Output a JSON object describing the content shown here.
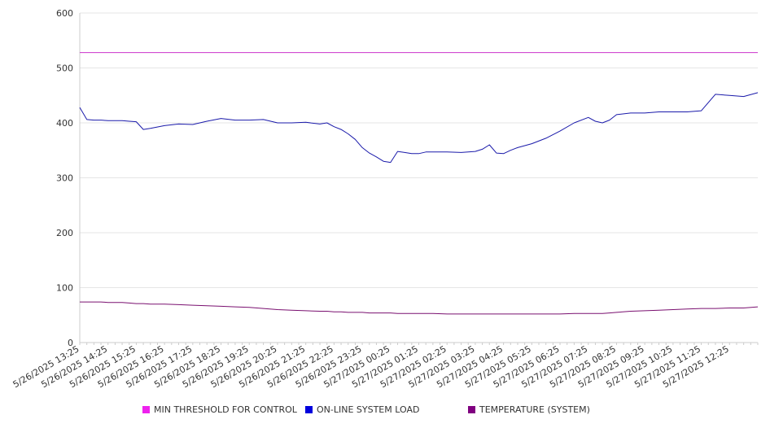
{
  "chart_data": {
    "type": "line",
    "title": "",
    "xlabel": "",
    "ylabel": "",
    "ylim": [
      0,
      600
    ],
    "yticks": [
      0,
      100,
      200,
      300,
      400,
      500,
      600
    ],
    "grid": true,
    "legend_position": "bottom",
    "x_tick_labels": [
      "5/26/2025 13:25",
      "5/26/2025 14:25",
      "5/26/2025 15:25",
      "5/26/2025 16:25",
      "5/26/2025 17:25",
      "5/26/2025 18:25",
      "5/26/2025 19:25",
      "5/26/2025 20:25",
      "5/26/2025 21:25",
      "5/26/2025 22:25",
      "5/26/2025 23:25",
      "5/27/2025 00:25",
      "5/27/2025 01:25",
      "5/27/2025 02:25",
      "5/27/2025 03:25",
      "5/27/2025 04:25",
      "5/27/2025 05:25",
      "5/27/2025 06:25",
      "5/27/2025 07:25",
      "5/27/2025 08:25",
      "5/27/2025 09:25",
      "5/27/2025 10:25",
      "5/27/2025 11:25",
      "5/27/2025 12:25"
    ],
    "x_hours": [
      0,
      0.25,
      0.5,
      0.75,
      1,
      1.5,
      1.75,
      2,
      2.25,
      2.5,
      3,
      3.5,
      4,
      4.5,
      5,
      5.5,
      6,
      6.5,
      7,
      7.5,
      8,
      8.5,
      8.75,
      9,
      9.25,
      9.5,
      9.75,
      10,
      10.25,
      10.5,
      10.75,
      11,
      11.25,
      11.5,
      11.75,
      12,
      12.25,
      12.5,
      13,
      13.5,
      14,
      14.25,
      14.5,
      14.75,
      15,
      15.25,
      15.5,
      16,
      16.5,
      17,
      17.5,
      18,
      18.25,
      18.5,
      18.75,
      19,
      19.5,
      20,
      20.5,
      21,
      21.5,
      22,
      22.5,
      23,
      23.5,
      24
    ],
    "series": [
      {
        "name": "MIN THRESHOLD FOR CONTROL",
        "color": "#cc33cc",
        "values": [
          528,
          528,
          528,
          528,
          528,
          528,
          528,
          528,
          528,
          528,
          528,
          528,
          528,
          528,
          528,
          528,
          528,
          528,
          528,
          528,
          528,
          528,
          528,
          528,
          528,
          528,
          528,
          528,
          528,
          528,
          528,
          528,
          528,
          528,
          528,
          528,
          528,
          528,
          528,
          528,
          528,
          528,
          528,
          528,
          528,
          528,
          528,
          528,
          528,
          528,
          528,
          528,
          528,
          528,
          528,
          528,
          528,
          528,
          528,
          528,
          528,
          528,
          528,
          528,
          528,
          528
        ]
      },
      {
        "name": "ON-LINE SYSTEM LOAD",
        "color": "#1a1aaa",
        "values": [
          428,
          406,
          405,
          405,
          404,
          404,
          403,
          402,
          388,
          390,
          395,
          398,
          397,
          403,
          408,
          405,
          405,
          406,
          400,
          400,
          401,
          398,
          400,
          393,
          388,
          380,
          370,
          355,
          345,
          338,
          330,
          328,
          348,
          346,
          344,
          344,
          347,
          347,
          347,
          346,
          348,
          352,
          360,
          345,
          344,
          350,
          355,
          362,
          372,
          385,
          400,
          410,
          403,
          400,
          405,
          415,
          418,
          418,
          420,
          420,
          420,
          422,
          452,
          450,
          448,
          455
        ]
      },
      {
        "name": "TEMPERATURE (SYSTEM)",
        "color": "#7a1070",
        "values": [
          74,
          74,
          74,
          74,
          73,
          73,
          72,
          71,
          71,
          70,
          70,
          69,
          68,
          67,
          66,
          65,
          64,
          62,
          60,
          59,
          58,
          57,
          57,
          56,
          56,
          55,
          55,
          55,
          54,
          54,
          54,
          54,
          53,
          53,
          53,
          53,
          53,
          53,
          52,
          52,
          52,
          52,
          52,
          52,
          52,
          52,
          52,
          52,
          52,
          52,
          53,
          53,
          53,
          53,
          54,
          55,
          57,
          58,
          59,
          60,
          61,
          62,
          62,
          63,
          63,
          65
        ]
      }
    ]
  }
}
